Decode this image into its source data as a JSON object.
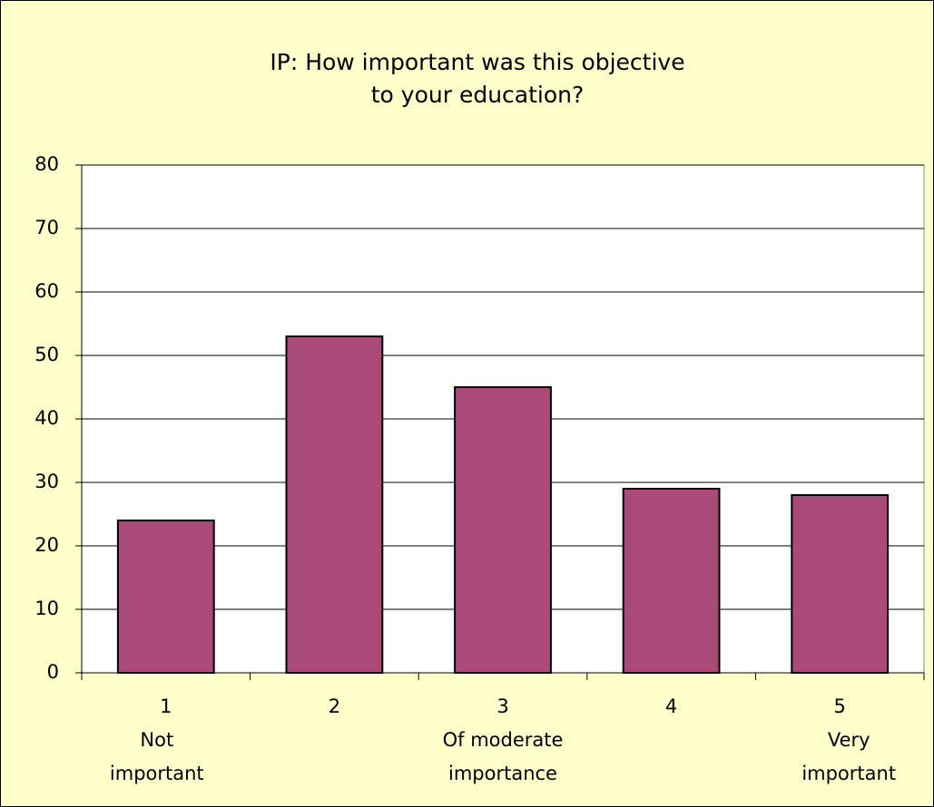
{
  "chart_data": {
    "type": "bar",
    "title": [
      "IP: How important was this objective",
      "to your education?"
    ],
    "categories": [
      [
        "1",
        "Not",
        "important"
      ],
      [
        "2"
      ],
      [
        "3",
        "Of moderate",
        "importance"
      ],
      [
        "4"
      ],
      [
        "5",
        "Very",
        "important"
      ]
    ],
    "values": [
      24,
      53,
      45,
      29,
      28
    ],
    "color": "#aa4a78",
    "ylim": [
      0,
      80
    ],
    "yticks": [
      0,
      10,
      20,
      30,
      40,
      50,
      60,
      70,
      80
    ],
    "grid": true
  }
}
